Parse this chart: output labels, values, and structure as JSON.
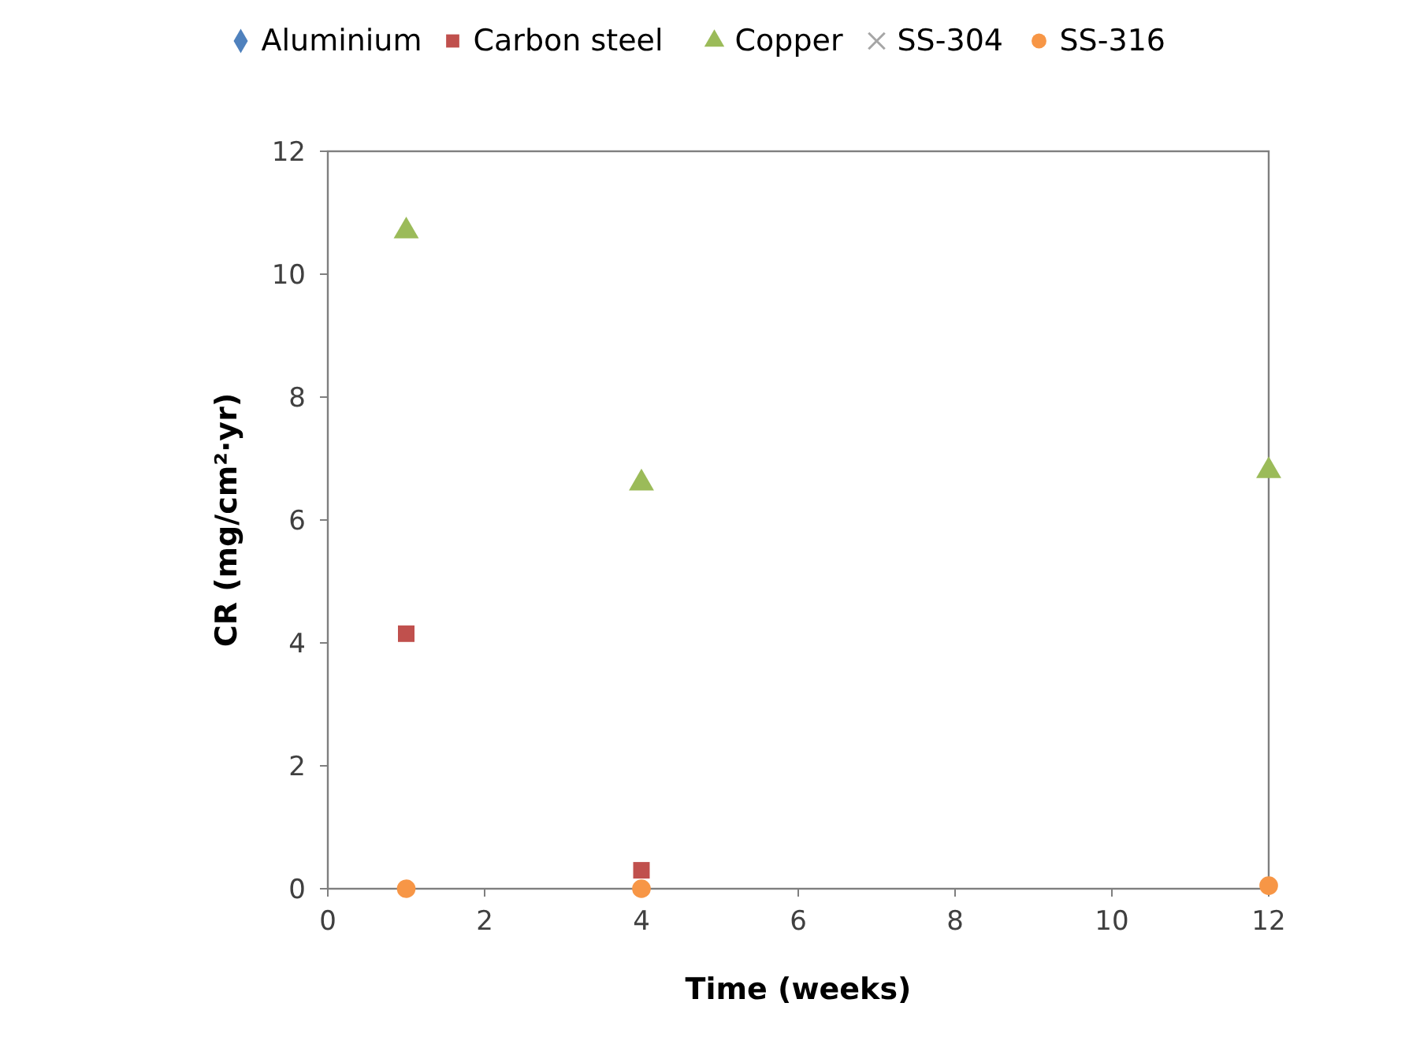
{
  "chart_data": {
    "type": "scatter",
    "xlabel": "Time (weeks)",
    "ylabel": "CR (mg/cm²·yr)",
    "x": [
      1,
      4,
      12
    ],
    "series": [
      {
        "name": "Aluminium",
        "color": "#4f81bd",
        "marker": "diamond",
        "values": [
          null,
          null,
          null
        ]
      },
      {
        "name": "Carbon steel",
        "color": "#c0504d",
        "marker": "square",
        "values": [
          4.15,
          0.3,
          null
        ]
      },
      {
        "name": "Copper",
        "color": "#9bbb59",
        "marker": "triangle",
        "values": [
          10.7,
          6.6,
          6.8
        ]
      },
      {
        "name": "SS-304",
        "color": "#a6a6a6",
        "marker": "cross",
        "values": [
          null,
          null,
          null
        ]
      },
      {
        "name": "SS-316",
        "color": "#f79646",
        "marker": "circle",
        "values": [
          0,
          0,
          0.05
        ]
      }
    ],
    "xlim": [
      0,
      12
    ],
    "xticks": [
      0,
      2,
      4,
      6,
      8,
      10,
      12
    ],
    "ylim": [
      0,
      12
    ],
    "yticks": [
      0,
      2,
      4,
      6,
      8,
      10,
      12
    ],
    "grid": false,
    "legend": "top"
  }
}
